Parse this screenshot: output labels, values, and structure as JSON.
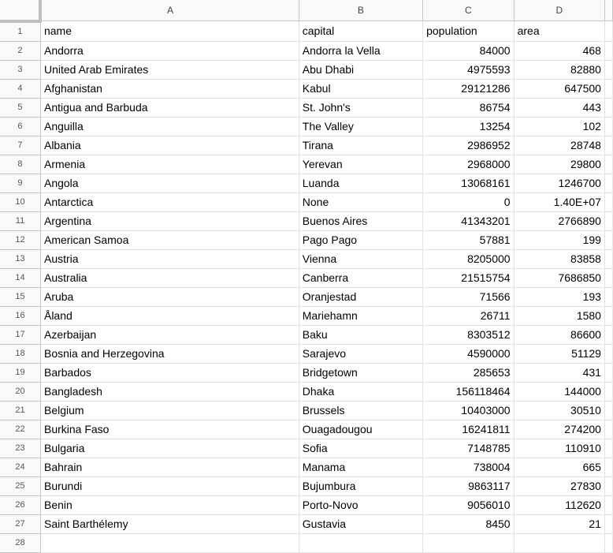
{
  "columns": [
    "A",
    "B",
    "C",
    "D"
  ],
  "rows": [
    [
      "name",
      "capital",
      "population",
      "area"
    ],
    [
      "Andorra",
      "Andorra la Vella",
      "84000",
      "468"
    ],
    [
      "United Arab Emirates",
      "Abu Dhabi",
      "4975593",
      "82880"
    ],
    [
      "Afghanistan",
      "Kabul",
      "29121286",
      "647500"
    ],
    [
      "Antigua and Barbuda",
      "St. John's",
      "86754",
      "443"
    ],
    [
      "Anguilla",
      "The Valley",
      "13254",
      "102"
    ],
    [
      "Albania",
      "Tirana",
      "2986952",
      "28748"
    ],
    [
      "Armenia",
      "Yerevan",
      "2968000",
      "29800"
    ],
    [
      "Angola",
      "Luanda",
      "13068161",
      "1246700"
    ],
    [
      "Antarctica",
      "None",
      "0",
      "1.40E+07"
    ],
    [
      "Argentina",
      "Buenos Aires",
      "41343201",
      "2766890"
    ],
    [
      "American Samoa",
      "Pago Pago",
      "57881",
      "199"
    ],
    [
      "Austria",
      "Vienna",
      "8205000",
      "83858"
    ],
    [
      "Australia",
      "Canberra",
      "21515754",
      "7686850"
    ],
    [
      "Aruba",
      "Oranjestad",
      "71566",
      "193"
    ],
    [
      "Åland",
      "Mariehamn",
      "26711",
      "1580"
    ],
    [
      "Azerbaijan",
      "Baku",
      "8303512",
      "86600"
    ],
    [
      "Bosnia and Herzegovina",
      "Sarajevo",
      "4590000",
      "51129"
    ],
    [
      "Barbados",
      "Bridgetown",
      "285653",
      "431"
    ],
    [
      "Bangladesh",
      "Dhaka",
      "156118464",
      "144000"
    ],
    [
      "Belgium",
      "Brussels",
      "10403000",
      "30510"
    ],
    [
      "Burkina Faso",
      "Ouagadougou",
      "16241811",
      "274200"
    ],
    [
      "Bulgaria",
      "Sofia",
      "7148785",
      "110910"
    ],
    [
      "Bahrain",
      "Manama",
      "738004",
      "665"
    ],
    [
      "Burundi",
      "Bujumbura",
      "9863117",
      "27830"
    ],
    [
      "Benin",
      "Porto-Novo",
      "9056010",
      "112620"
    ],
    [
      "Saint Barthélemy",
      "Gustavia",
      "8450",
      "21"
    ]
  ],
  "partial_row_number": "28"
}
